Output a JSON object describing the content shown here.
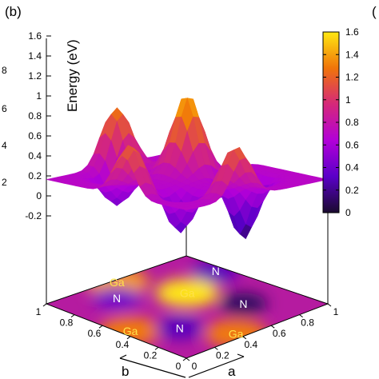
{
  "chart_data": {
    "type": "surface",
    "panel_label": "(b)",
    "right_edge_partial_label": "(",
    "left_edge_partial_ticks": [
      "8",
      "6",
      "4",
      "2"
    ],
    "zlabel": "Energy (eV)",
    "zlim": [
      -0.2,
      1.6
    ],
    "z_ticks": [
      "1.6",
      "1.4",
      "1.2",
      "1",
      "0.8",
      "0.6",
      "0.4",
      "0.2",
      "0",
      "-0.2"
    ],
    "colorbar": {
      "range": [
        0,
        1.6
      ],
      "ticks": [
        "1.6",
        "1.4",
        "1.2",
        "1",
        "0.8",
        "0.6",
        "0.4",
        "0.2",
        "0"
      ],
      "colors": [
        "#1a0a2e",
        "#5a00c8",
        "#b200d8",
        "#d5287a",
        "#f0740a",
        "#ffe812"
      ]
    },
    "xlabel": "a",
    "ylabel": "b",
    "x_ticks": [
      "0",
      "0.2",
      "0.4",
      "0.6",
      "0.8",
      "1"
    ],
    "y_ticks": [
      "1",
      "0.8",
      "0.6",
      "0.4",
      "0.2",
      "0"
    ],
    "atom_labels": [
      {
        "text": "Ga",
        "a": 0.05,
        "b": 0.45
      },
      {
        "text": "Ga",
        "a": 0.4,
        "b": 0.05
      },
      {
        "text": "Ga",
        "a": 0.6,
        "b": 0.6
      },
      {
        "text": "Ga",
        "a": 0.45,
        "b": 0.95
      },
      {
        "text": "N",
        "a": 0.25,
        "b": 0.3
      },
      {
        "text": "N",
        "a": 0.7,
        "b": 0.3
      },
      {
        "text": "N",
        "a": 0.9,
        "b": 0.7
      },
      {
        "text": "N",
        "a": 0.3,
        "b": 0.8
      }
    ],
    "peaks": [
      {
        "a": 0.05,
        "b": 0.45,
        "energy": 1.2
      },
      {
        "a": 0.4,
        "b": 0.05,
        "energy": 1.2
      },
      {
        "a": 0.6,
        "b": 0.6,
        "energy": 1.5
      },
      {
        "a": 0.45,
        "b": 0.95,
        "energy": 1.3
      }
    ],
    "minima": [
      {
        "a": 0.25,
        "b": 0.3,
        "energy": 0.3
      },
      {
        "a": 0.7,
        "b": 0.3,
        "energy": 0.1
      },
      {
        "a": 0.9,
        "b": 0.7,
        "energy": 0.3
      },
      {
        "a": 0.3,
        "b": 0.8,
        "energy": 0.4
      }
    ],
    "baseline_energy": 0.7
  }
}
